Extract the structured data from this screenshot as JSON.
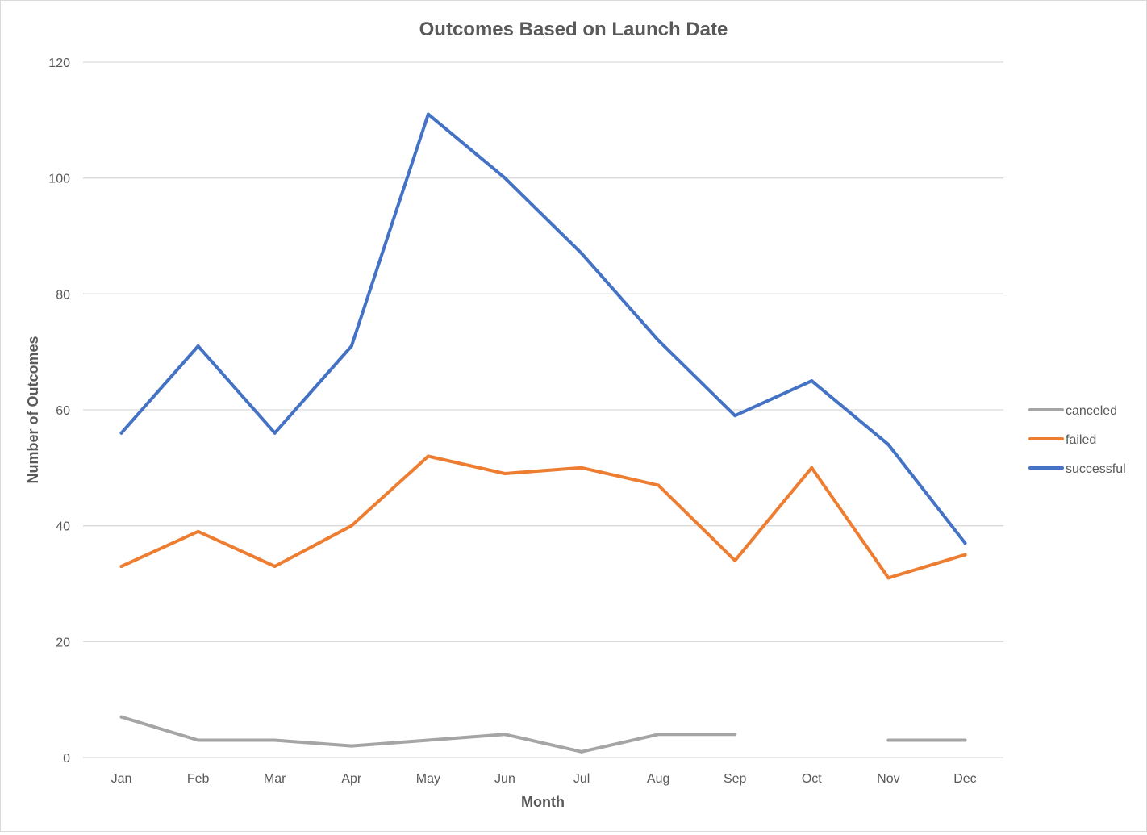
{
  "chart_data": {
    "type": "line",
    "title": "Outcomes Based on Launch Date",
    "xlabel": "Month",
    "ylabel": "Number of Outcomes",
    "categories": [
      "Jan",
      "Feb",
      "Mar",
      "Apr",
      "May",
      "Jun",
      "Jul",
      "Aug",
      "Sep",
      "Oct",
      "Nov",
      "Dec"
    ],
    "yticks": [
      "0",
      "20",
      "40",
      "60",
      "80",
      "100",
      "120"
    ],
    "ylim": [
      0,
      120
    ],
    "grid": "horizontal",
    "legend_position": "right",
    "series": [
      {
        "name": "canceled",
        "color": "#a5a5a5",
        "values": [
          7,
          3,
          3,
          2,
          3,
          4,
          1,
          4,
          4,
          null,
          3,
          3
        ]
      },
      {
        "name": "failed",
        "color": "#ed7d31",
        "values": [
          33,
          39,
          33,
          40,
          52,
          49,
          50,
          47,
          34,
          50,
          31,
          35
        ]
      },
      {
        "name": "successful",
        "color": "#4472c4",
        "values": [
          56,
          71,
          56,
          71,
          111,
          100,
          87,
          72,
          59,
          65,
          54,
          37
        ]
      }
    ]
  }
}
